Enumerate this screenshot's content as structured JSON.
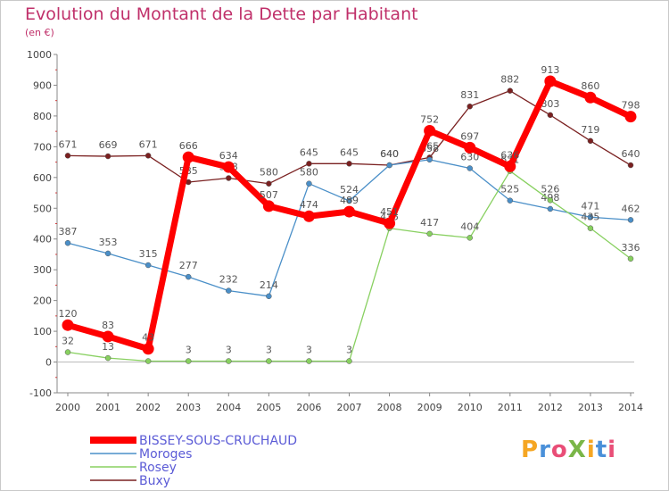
{
  "header": {
    "title": "Evolution du Montant de la Dette par Habitant",
    "unit": "(en €)"
  },
  "logo": {
    "text": "ProXiti",
    "colors": [
      "#f5a623",
      "#4a90d9",
      "#e94e77",
      "#7ab648",
      "#f5a623",
      "#4a90d9",
      "#e94e77"
    ]
  },
  "chart_data": {
    "type": "line",
    "x": [
      "2000",
      "2001",
      "2002",
      "2003",
      "2004",
      "2005",
      "2006",
      "2007",
      "2008",
      "2009",
      "2010",
      "2011",
      "2012",
      "2013",
      "2014"
    ],
    "ylim": [
      -100,
      1000
    ],
    "yticks": [
      -100,
      0,
      100,
      200,
      300,
      400,
      500,
      600,
      700,
      800,
      900,
      1000
    ],
    "grid": false,
    "legend_position": "bottom-left",
    "series": [
      {
        "name": "Buxy",
        "color": "#7a2020",
        "values": [
          671,
          669,
          671,
          585,
          598,
          580,
          645,
          645,
          640,
          665,
          831,
          882,
          803,
          719,
          640
        ],
        "labels": [
          "671",
          "669",
          "671",
          "585",
          "598",
          "580",
          "645",
          "645",
          "640",
          "665",
          "831",
          "882",
          "803",
          "719",
          "640"
        ]
      },
      {
        "name": "Moroges",
        "color": "#4a8fc8",
        "values": [
          387,
          353,
          315,
          277,
          232,
          214,
          580,
          524,
          640,
          658,
          630,
          525,
          498,
          471,
          462
        ],
        "labels": [
          "387",
          "353",
          "315",
          "277",
          "232",
          "214",
          "580",
          "524",
          "640",
          "658",
          "630",
          "525",
          "498",
          "471",
          "462"
        ]
      },
      {
        "name": "Rosey",
        "color": "#88d060",
        "values": [
          32,
          13,
          3,
          3,
          3,
          3,
          3,
          3,
          435,
          417,
          404,
          621,
          526,
          435,
          336
        ],
        "labels": [
          "32",
          "13",
          "",
          "3",
          "3",
          "3",
          "3",
          "3",
          "435",
          "417",
          "404",
          "621",
          "526",
          "435",
          "336"
        ]
      },
      {
        "name": "BISSEY-SOUS-CRUCHAUD",
        "color": "#ff0000",
        "values": [
          120,
          83,
          43,
          666,
          634,
          507,
          474,
          489,
          451,
          752,
          697,
          636,
          913,
          860,
          798
        ],
        "labels": [
          "120",
          "83",
          "43",
          "666",
          "634",
          "507",
          "474",
          "489",
          "451",
          "752",
          "697",
          "636",
          "913",
          "860",
          "798"
        ]
      }
    ],
    "legend": [
      "BISSEY-SOUS-CRUCHAUD",
      "Moroges",
      "Rosey",
      "Buxy"
    ]
  }
}
